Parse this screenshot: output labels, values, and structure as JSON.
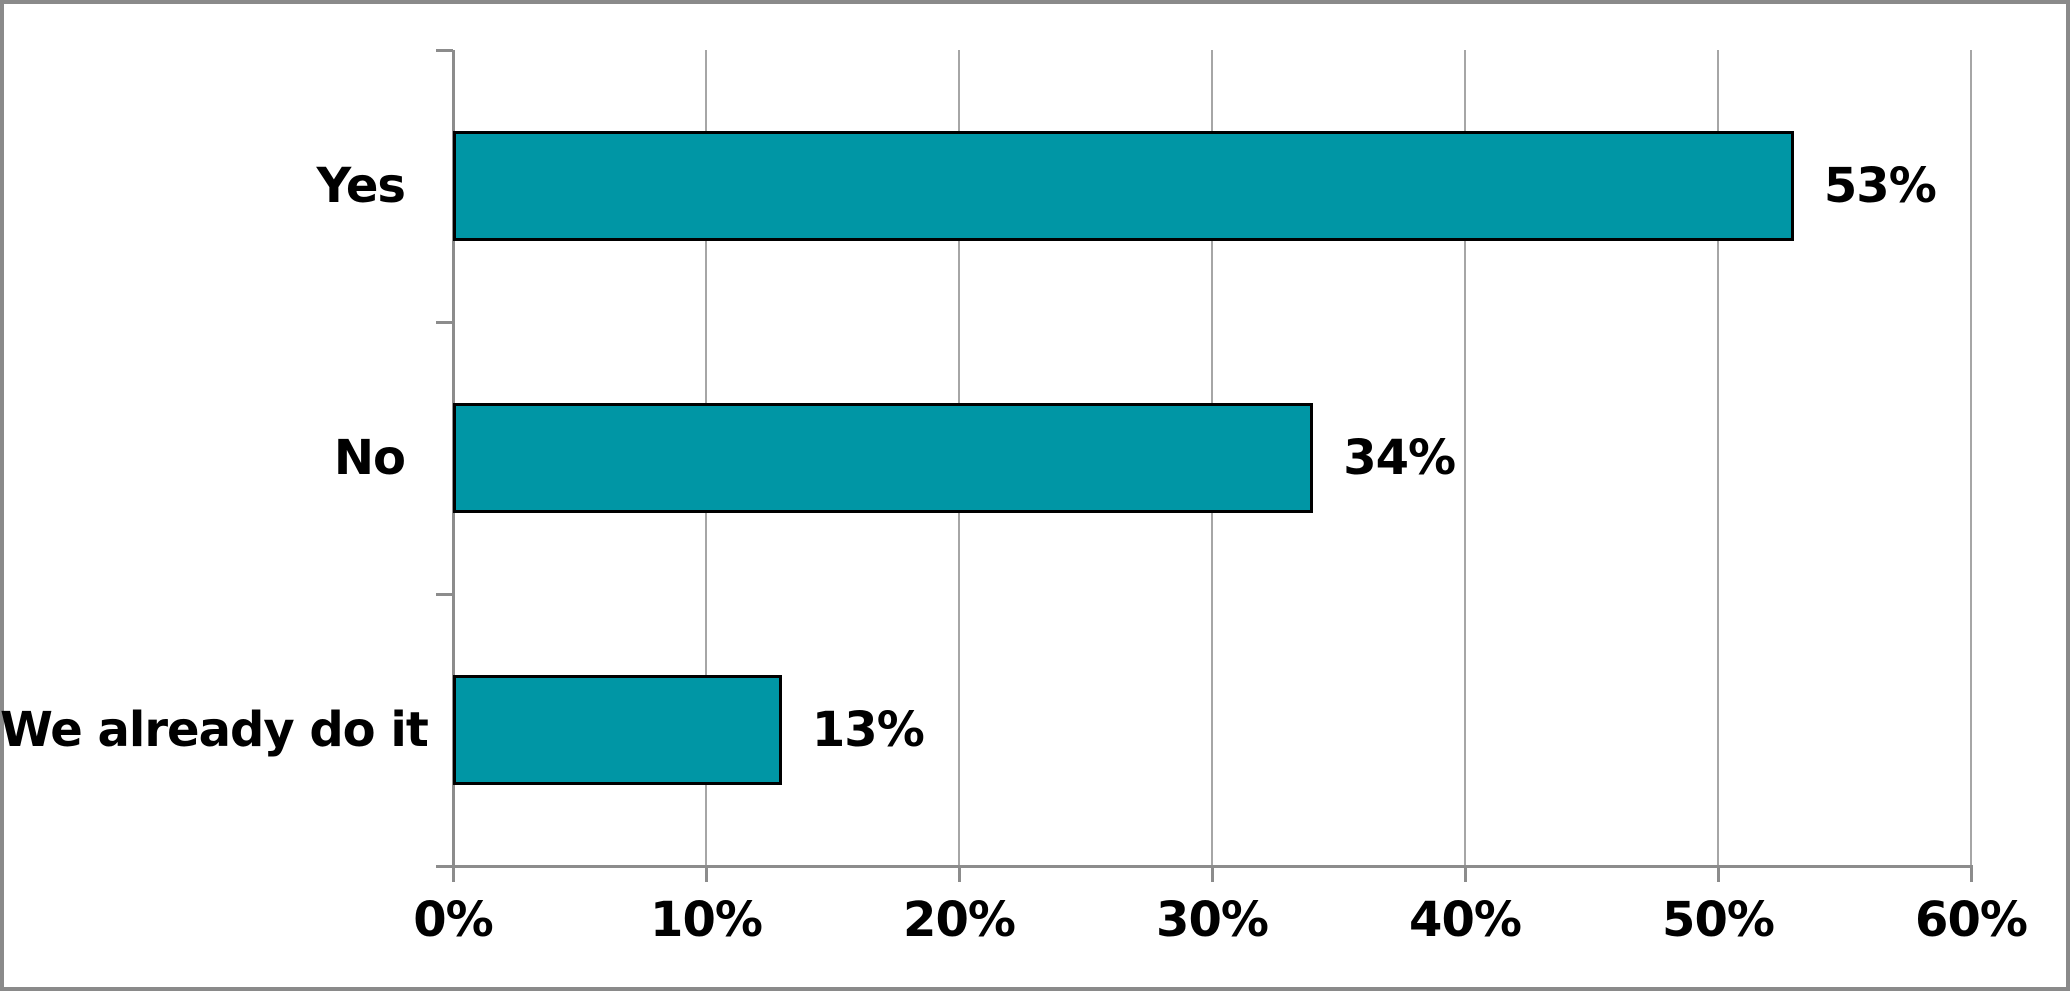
{
  "chart_data": {
    "type": "bar",
    "orientation": "horizontal",
    "title": "",
    "categories": [
      "Yes",
      "No",
      "We already do it"
    ],
    "values": [
      53,
      34,
      13
    ],
    "value_labels": [
      "53%",
      "34%",
      "13%"
    ],
    "x_tick_labels": [
      "0%",
      "10%",
      "20%",
      "30%",
      "40%",
      "50%",
      "60%"
    ],
    "x_tick_values": [
      0,
      10,
      20,
      30,
      40,
      50,
      60
    ],
    "xlim": [
      0,
      60
    ],
    "grid": true,
    "legend": "none",
    "colors": {
      "bar_fill": "#0096a5",
      "bar_border": "#000000",
      "gridline": "#a6a6a6",
      "axis": "#8c8c8c",
      "frame_border": "#8a8a8a",
      "text": "#000000",
      "background": "#ffffff"
    }
  }
}
